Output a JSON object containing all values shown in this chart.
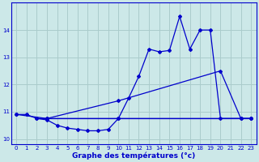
{
  "title": "Graphe des températures (°c)",
  "bg_color": "#cce8e8",
  "grid_color": "#aacccc",
  "line_color": "#0000cc",
  "xlim": [
    -0.5,
    23.5
  ],
  "ylim": [
    9.8,
    15.0
  ],
  "xticks": [
    0,
    1,
    2,
    3,
    4,
    5,
    6,
    7,
    8,
    9,
    10,
    11,
    12,
    13,
    14,
    15,
    16,
    17,
    18,
    19,
    20,
    21,
    22,
    23
  ],
  "yticks": [
    10,
    11,
    12,
    13,
    14
  ],
  "line1_x": [
    0,
    1,
    2,
    3,
    10,
    23
  ],
  "line1_y": [
    10.9,
    10.9,
    10.75,
    10.75,
    10.75,
    10.75
  ],
  "line2_x": [
    0,
    3,
    10,
    20,
    22,
    23
  ],
  "line2_y": [
    10.9,
    10.75,
    11.4,
    12.5,
    10.75,
    10.75
  ],
  "line3_x": [
    2,
    3,
    4,
    5,
    6,
    7,
    8,
    9,
    10,
    11,
    12,
    13,
    14,
    15,
    16,
    17,
    18,
    19,
    20,
    22,
    23
  ],
  "line3_y": [
    10.75,
    10.7,
    10.5,
    10.4,
    10.35,
    10.3,
    10.3,
    10.35,
    10.75,
    11.5,
    12.3,
    13.3,
    13.2,
    13.25,
    14.5,
    13.3,
    14.0,
    14.0,
    10.75,
    10.75,
    10.75
  ],
  "line4_x": [
    3,
    23
  ],
  "line4_y": [
    10.75,
    10.75
  ]
}
